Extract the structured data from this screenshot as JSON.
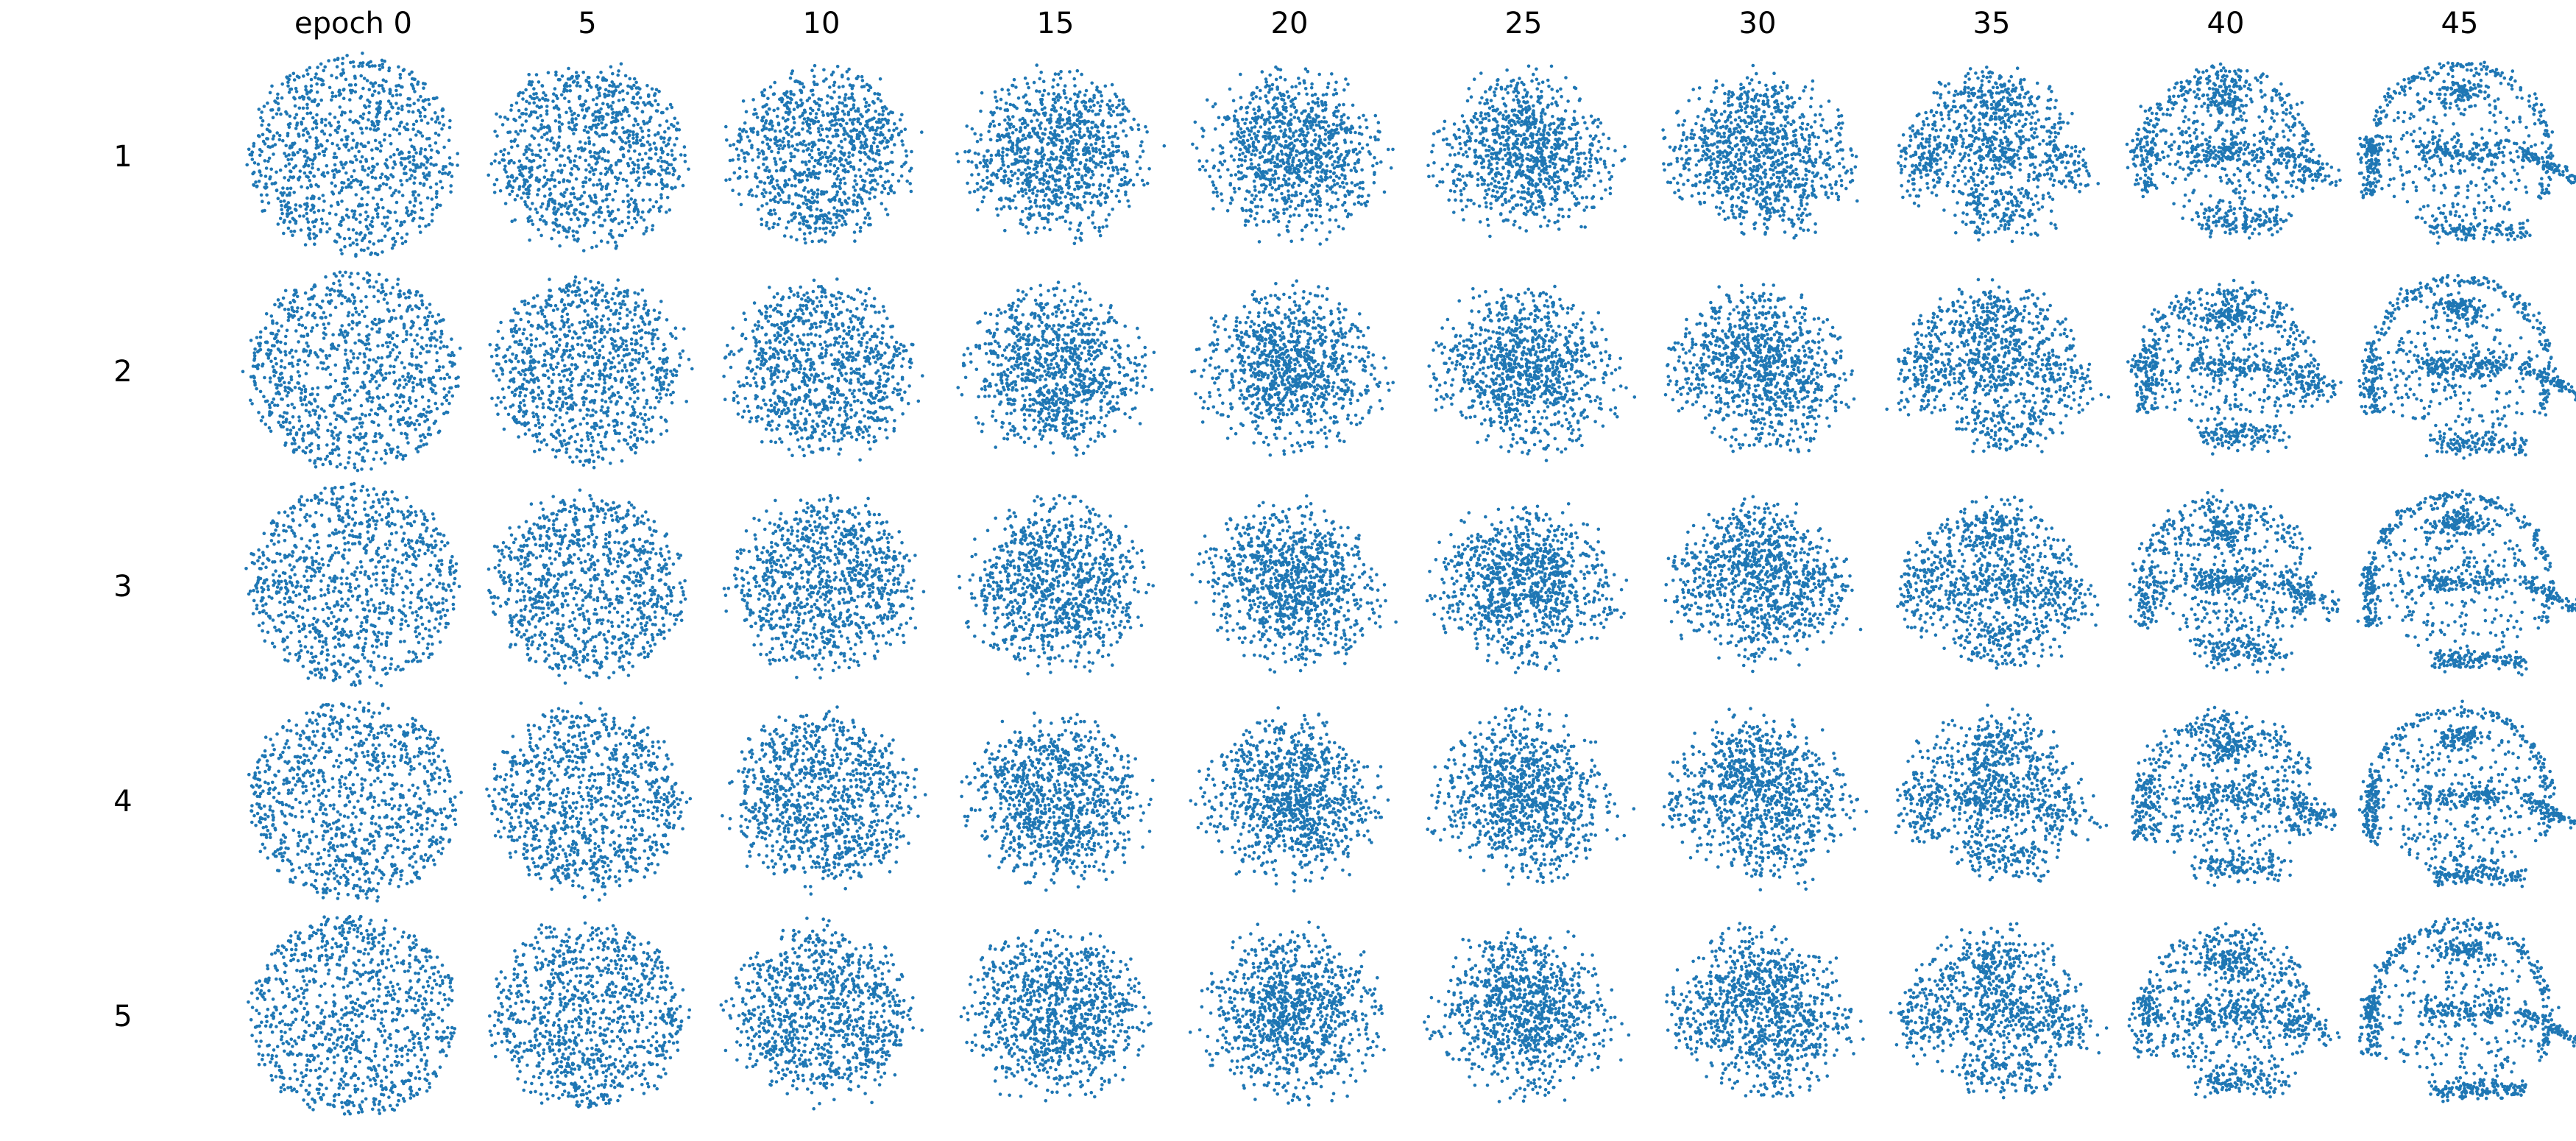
{
  "chart_data": {
    "type": "scatter",
    "column_labels": [
      "epoch 0",
      "5",
      "10",
      "15",
      "20",
      "25",
      "30",
      "35",
      "40",
      "45"
    ],
    "row_labels": [
      "1",
      "2",
      "3",
      "4",
      "5"
    ],
    "epochs": [
      0,
      5,
      10,
      15,
      20,
      25,
      30,
      35,
      40,
      45
    ],
    "points_per_panel": 1000,
    "marker_color": "#1f77b4",
    "axes_visible": false,
    "grid": false,
    "legend": "none"
  }
}
